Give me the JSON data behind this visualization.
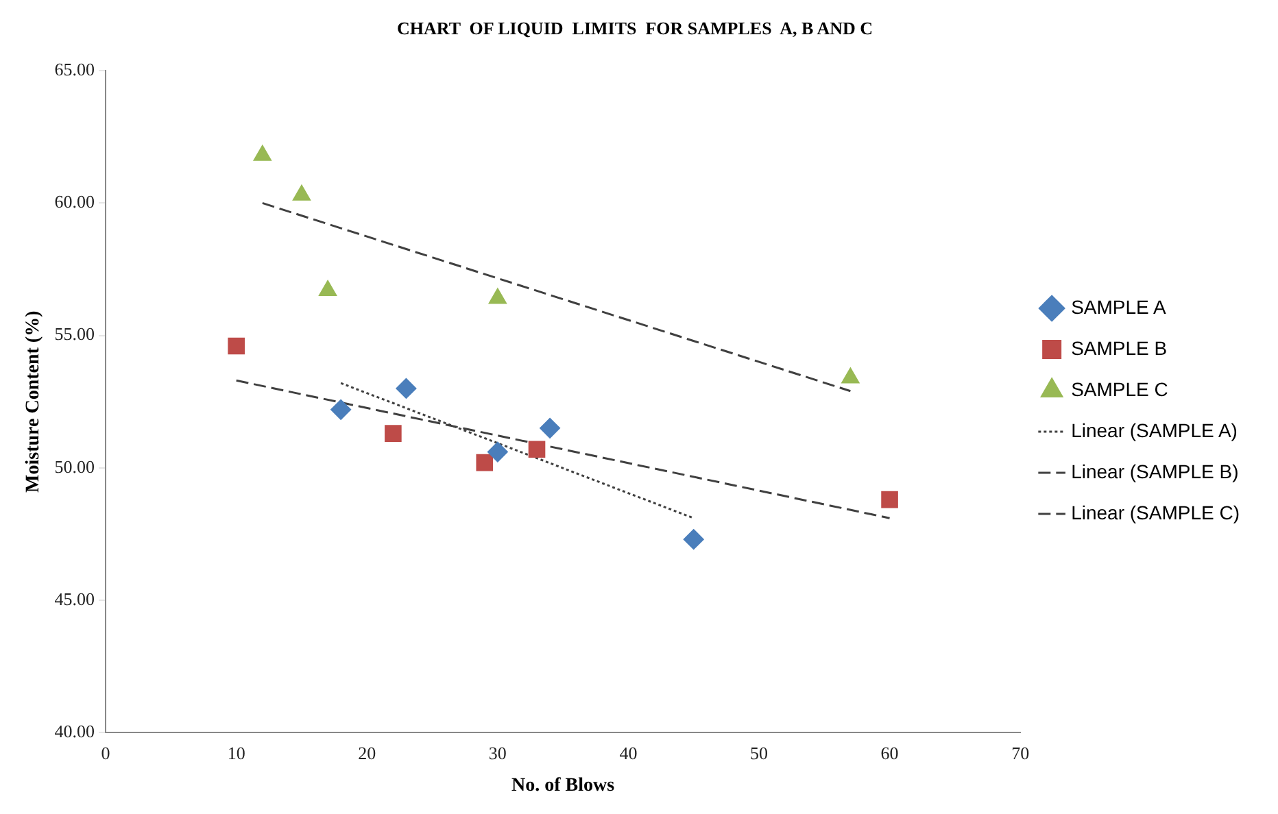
{
  "chart_data": {
    "type": "scatter",
    "title": "CHART  OF LIQUID  LIMITS  FOR SAMPLES  A, B AND C",
    "xlabel": "No. of Blows",
    "ylabel": "Moisture Content (%)",
    "xlim": [
      0,
      70
    ],
    "xticks": [
      0,
      10,
      20,
      30,
      40,
      50,
      60,
      70
    ],
    "ylim": [
      40,
      65
    ],
    "yticks": [
      {
        "value": 40,
        "label": "40.00"
      },
      {
        "value": 45,
        "label": "45.00"
      },
      {
        "value": 50,
        "label": "50.00"
      },
      {
        "value": 55,
        "label": "55.00"
      },
      {
        "value": 60,
        "label": "60.00"
      },
      {
        "value": 65,
        "label": "65.00"
      }
    ],
    "grid": false,
    "legend": "right",
    "series": [
      {
        "name": "SAMPLE A",
        "marker": "diamond",
        "color": "#4a7ebb",
        "x": [
          18,
          23,
          30,
          34,
          45
        ],
        "values": [
          52.2,
          53.0,
          50.6,
          51.5,
          47.3
        ]
      },
      {
        "name": "SAMPLE B",
        "marker": "square",
        "color": "#be4b48",
        "x": [
          10,
          22,
          29,
          33,
          60
        ],
        "values": [
          54.6,
          51.3,
          50.2,
          50.7,
          48.8
        ]
      },
      {
        "name": "SAMPLE C",
        "marker": "triangle",
        "color": "#98b954",
        "x": [
          12,
          15,
          17,
          30,
          57
        ],
        "values": [
          61.8,
          60.3,
          56.7,
          56.4,
          53.4
        ]
      },
      {
        "name": "Linear (SAMPLE A)",
        "type": "line",
        "marker": "none",
        "line_style": "dotted",
        "color": "#404040",
        "x": [
          18,
          45
        ],
        "values": [
          53.2,
          48.1
        ]
      },
      {
        "name": "Linear (SAMPLE B)",
        "type": "line",
        "marker": "none",
        "line_style": "dashed",
        "color": "#404040",
        "x": [
          10,
          60
        ],
        "values": [
          53.3,
          48.1
        ]
      },
      {
        "name": "Linear (SAMPLE C)",
        "type": "line",
        "marker": "none",
        "line_style": "dashed",
        "color": "#404040",
        "x": [
          12,
          57
        ],
        "values": [
          60.0,
          52.9
        ]
      }
    ]
  }
}
